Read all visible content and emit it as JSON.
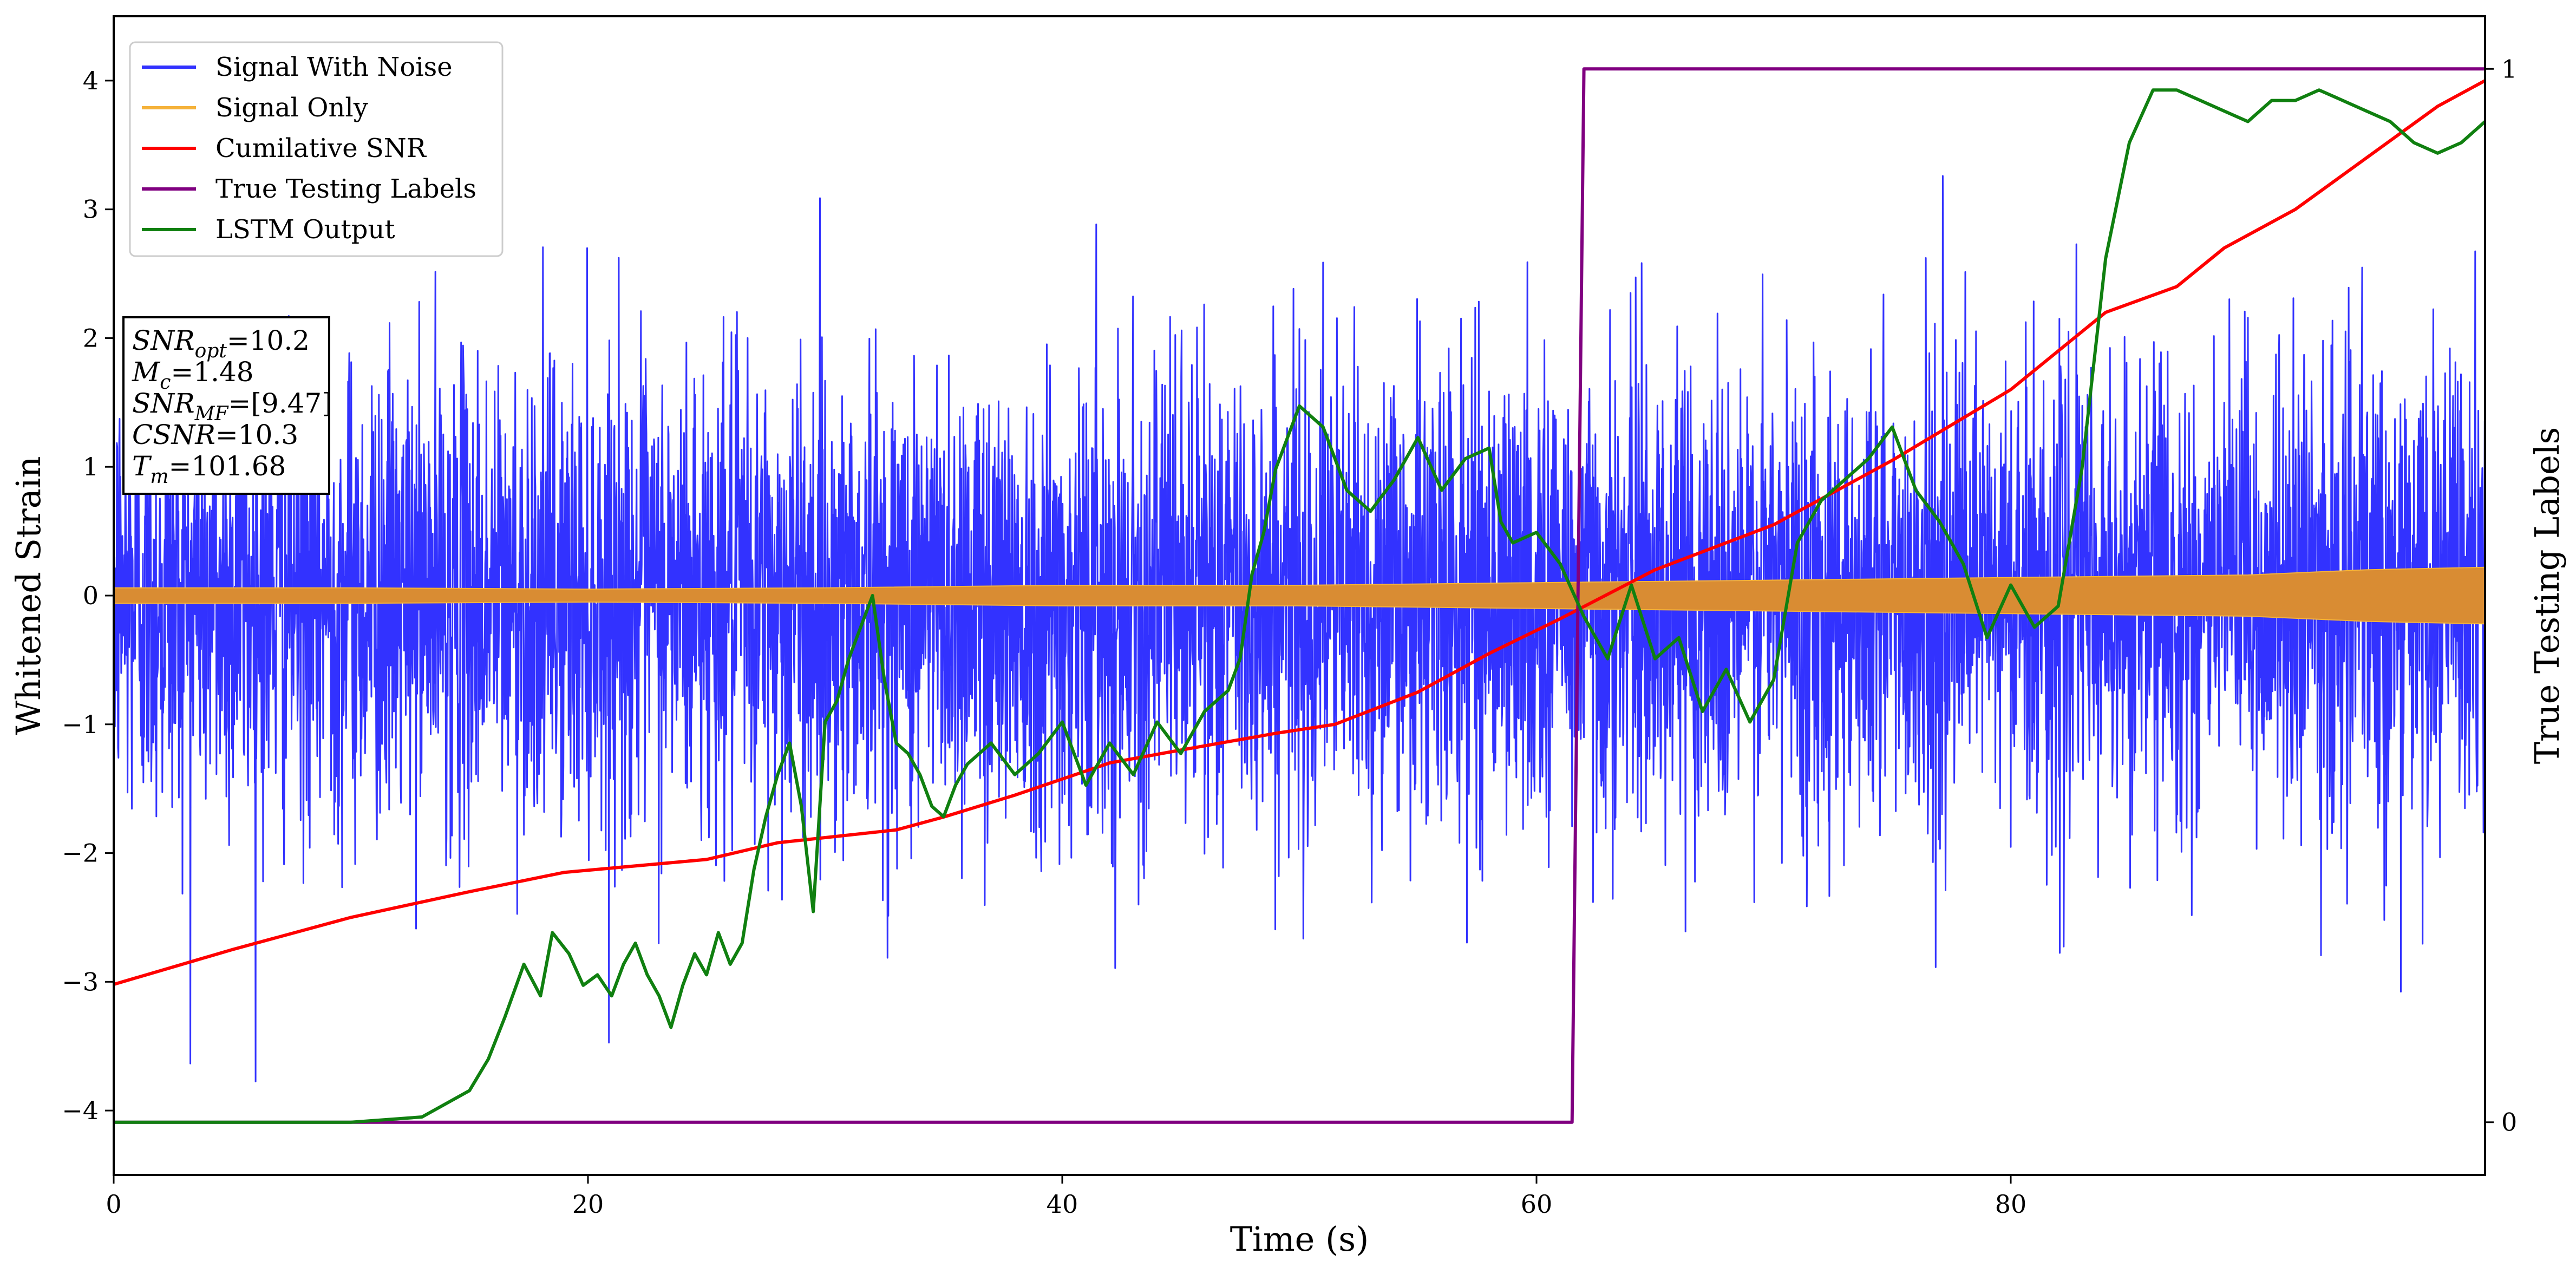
{
  "chart_data": {
    "type": "line",
    "xlabel": "Time (s)",
    "ylabel": "Whitened Strain",
    "y2label": "True Testing Labels",
    "xlim": [
      0,
      100
    ],
    "ylim": [
      -4.5,
      4.5
    ],
    "y2lim": [
      -0.05,
      1.05
    ],
    "xticks": [
      0,
      20,
      40,
      60,
      80
    ],
    "yticks": [
      -4,
      -3,
      -2,
      -1,
      0,
      1,
      2,
      3,
      4
    ],
    "y2ticks": [
      0,
      1
    ],
    "grid": false,
    "legend_position": "top-left",
    "series": [
      {
        "name": "Signal With Noise",
        "axis": "left",
        "color": "#3232ff",
        "kind": "noise",
        "amplitude": 0.9,
        "max_abs": 4.1,
        "x_range": [
          0,
          100
        ]
      },
      {
        "name": "Signal Only",
        "axis": "left",
        "color": "#f5b23a",
        "kind": "envelope",
        "x": [
          0,
          10,
          20,
          30,
          40,
          50,
          60,
          70,
          80,
          90,
          95,
          100
        ],
        "y": [
          0.06,
          0.06,
          0.05,
          0.06,
          0.08,
          0.08,
          0.1,
          0.12,
          0.14,
          0.16,
          0.2,
          0.22
        ]
      },
      {
        "name": "Cumilative SNR",
        "axis": "left",
        "color": "#ff0000",
        "x": [
          0,
          5,
          10,
          15,
          19,
          25,
          28,
          30,
          33,
          35,
          38,
          42,
          45,
          49,
          51.5,
          55,
          58,
          61,
          65,
          70,
          75,
          80,
          84,
          87,
          89,
          92,
          95,
          98,
          100
        ],
        "y": [
          -3.02,
          -2.75,
          -2.5,
          -2.3,
          -2.15,
          -2.05,
          -1.92,
          -1.88,
          -1.82,
          -1.72,
          -1.55,
          -1.3,
          -1.2,
          -1.07,
          -1.0,
          -0.75,
          -0.45,
          -0.18,
          0.2,
          0.55,
          1.05,
          1.6,
          2.2,
          2.4,
          2.7,
          3.0,
          3.4,
          3.8,
          4.0
        ]
      },
      {
        "name": "True Testing Labels",
        "axis": "right",
        "color": "#800080",
        "x": [
          0,
          61.5,
          62,
          100
        ],
        "y": [
          0,
          0,
          1,
          1
        ]
      },
      {
        "name": "LSTM Output",
        "axis": "right",
        "color": "#108010",
        "x": [
          0,
          10,
          13,
          15,
          15.8,
          16.5,
          17.3,
          18,
          18.5,
          19.2,
          19.8,
          20.4,
          21,
          21.5,
          22,
          22.5,
          23,
          23.5,
          24,
          24.5,
          25,
          25.5,
          26,
          26.5,
          27,
          27.5,
          28,
          28.5,
          29,
          29.5,
          30,
          30.5,
          31,
          31.5,
          32,
          32.5,
          33,
          33.5,
          34,
          34.5,
          35,
          35.5,
          36,
          37,
          38,
          39,
          40,
          41,
          42,
          43,
          44,
          45,
          46,
          47,
          47.5,
          48,
          48.5,
          49,
          49.5,
          50,
          51,
          52,
          53,
          54,
          55,
          56,
          57,
          58,
          58.5,
          59,
          60,
          61,
          62,
          63,
          64,
          65,
          66,
          67,
          68,
          69,
          70,
          71,
          72,
          73,
          74,
          75,
          76,
          77,
          78,
          79,
          80,
          81,
          82,
          83,
          84,
          85,
          86,
          87,
          88,
          89,
          90,
          91,
          92,
          93,
          94,
          95,
          96,
          97,
          98,
          99,
          100
        ],
        "y": [
          0,
          0,
          0.005,
          0.03,
          0.06,
          0.1,
          0.15,
          0.12,
          0.18,
          0.16,
          0.13,
          0.14,
          0.12,
          0.15,
          0.17,
          0.14,
          0.12,
          0.09,
          0.13,
          0.16,
          0.14,
          0.18,
          0.15,
          0.17,
          0.24,
          0.29,
          0.33,
          0.36,
          0.3,
          0.2,
          0.38,
          0.4,
          0.44,
          0.47,
          0.5,
          0.42,
          0.36,
          0.35,
          0.33,
          0.3,
          0.29,
          0.32,
          0.34,
          0.36,
          0.33,
          0.35,
          0.38,
          0.32,
          0.36,
          0.33,
          0.38,
          0.35,
          0.39,
          0.41,
          0.44,
          0.52,
          0.56,
          0.62,
          0.65,
          0.68,
          0.66,
          0.6,
          0.58,
          0.61,
          0.65,
          0.6,
          0.63,
          0.64,
          0.57,
          0.55,
          0.56,
          0.53,
          0.48,
          0.44,
          0.51,
          0.44,
          0.46,
          0.39,
          0.43,
          0.38,
          0.42,
          0.55,
          0.59,
          0.61,
          0.63,
          0.66,
          0.6,
          0.57,
          0.53,
          0.46,
          0.51,
          0.47,
          0.49,
          0.62,
          0.82,
          0.93,
          0.98,
          0.98,
          0.97,
          0.96,
          0.95,
          0.97,
          0.97,
          0.98,
          0.97,
          0.96,
          0.95,
          0.93,
          0.92,
          0.93,
          0.95
        ]
      }
    ],
    "annotation": {
      "lines": [
        {
          "base": "SNR",
          "sub": "opt",
          "text": "=10.2"
        },
        {
          "base": "M",
          "sub": "c",
          "text": "=1.48"
        },
        {
          "base": "SNR",
          "sub": "MF",
          "text": "=[9.47]"
        },
        {
          "base": "CSNR",
          "sub": "",
          "text": "=10.3"
        },
        {
          "base": "T",
          "sub": "m",
          "text": "=101.68"
        }
      ]
    }
  }
}
